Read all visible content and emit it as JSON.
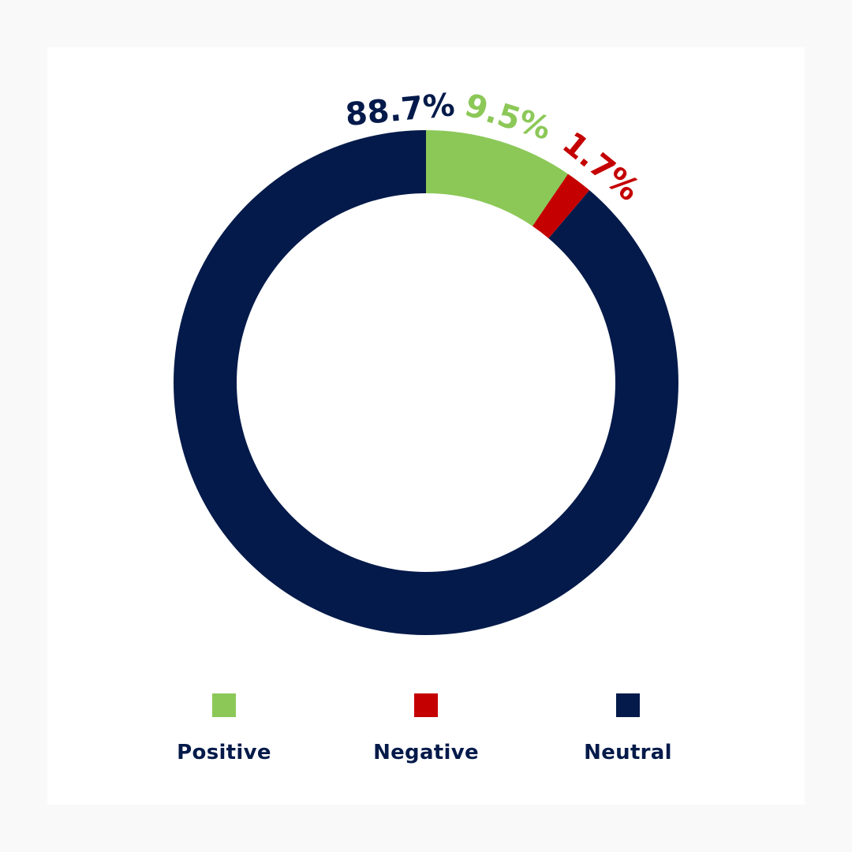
{
  "chart_data": {
    "type": "pie",
    "variant": "donut",
    "title": "",
    "series": [
      {
        "name": "Positive",
        "value": 9.5,
        "label": "9.5%",
        "color": "#8cc858"
      },
      {
        "name": "Negative",
        "value": 1.7,
        "label": "1.7%",
        "color": "#c40000"
      },
      {
        "name": "Neutral",
        "value": 88.7,
        "label": "88.7%",
        "color": "#041a4a"
      }
    ],
    "legend": {
      "position": "bottom"
    }
  }
}
